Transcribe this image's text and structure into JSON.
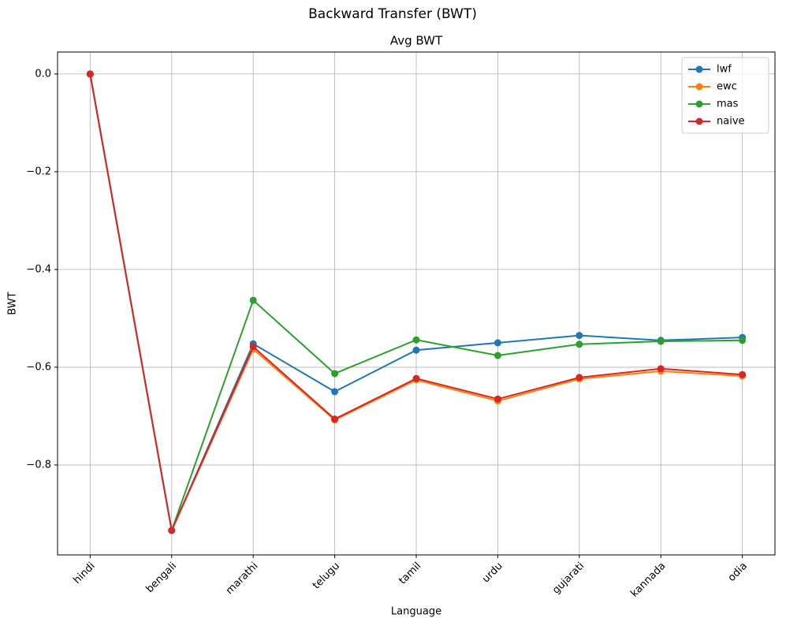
{
  "chart_data": {
    "type": "line",
    "title": "Backward Transfer (BWT)",
    "subtitle": "Avg BWT",
    "x_label": "Language",
    "y_label": "BWT",
    "categories": [
      "hindi",
      "bengali",
      "marathi",
      "telugu",
      "tamil",
      "urdu",
      "gujarati",
      "kannada",
      "odia"
    ],
    "series": [
      {
        "name": "lwf",
        "color": "#1f77b4",
        "values": [
          0,
          -0.934,
          -0.552,
          -0.65,
          -0.565,
          -0.55,
          -0.535,
          -0.545,
          -0.539
        ]
      },
      {
        "name": "ewc",
        "color": "#ff7f0e",
        "values": [
          0,
          -0.934,
          -0.563,
          -0.708,
          -0.626,
          -0.669,
          -0.624,
          -0.608,
          -0.618
        ]
      },
      {
        "name": "mas",
        "color": "#2ca02c",
        "values": [
          0,
          -0.934,
          -0.463,
          -0.613,
          -0.544,
          -0.576,
          -0.553,
          -0.547,
          -0.545
        ]
      },
      {
        "name": "naive",
        "color": "#d62728",
        "values": [
          0,
          -0.934,
          -0.558,
          -0.706,
          -0.623,
          -0.665,
          -0.621,
          -0.603,
          -0.615
        ]
      }
    ],
    "ylim": [
      -0.984,
      0.045
    ],
    "yticks": [
      {
        "value": 0,
        "label": "0.0"
      },
      {
        "value": -0.2,
        "label": "−0.2"
      },
      {
        "value": -0.4,
        "label": "−0.4"
      },
      {
        "value": -0.6,
        "label": "−0.6"
      },
      {
        "value": -0.8,
        "label": "−0.8"
      }
    ],
    "grid": true,
    "legend": "upper right"
  }
}
